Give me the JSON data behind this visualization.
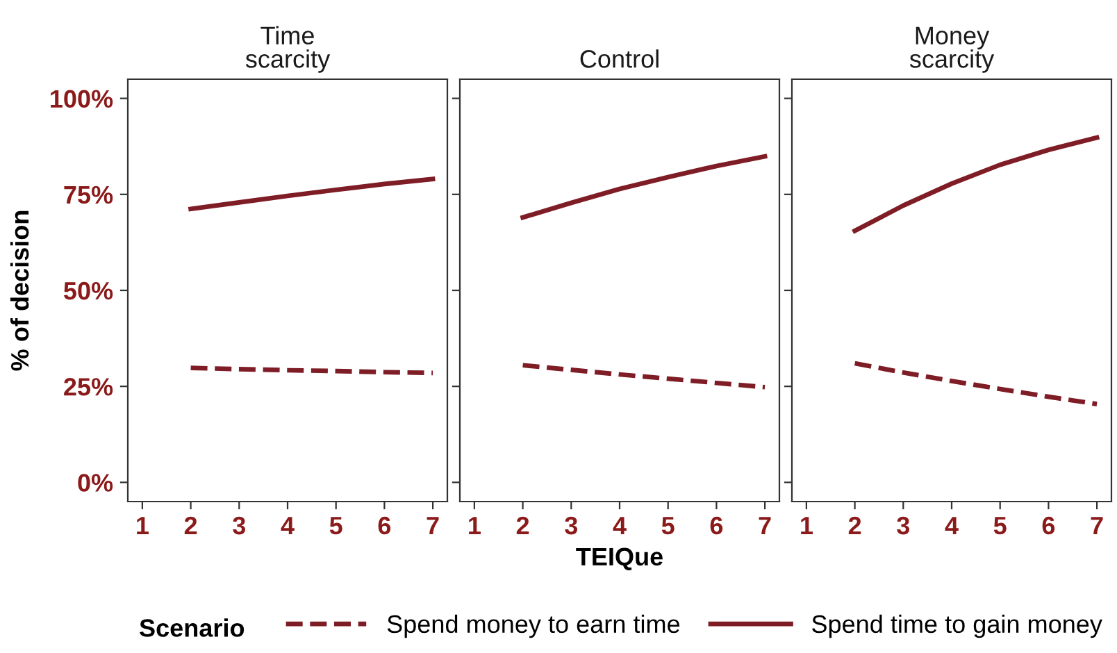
{
  "chart_data": [
    {
      "type": "line",
      "title": "Time\nscarcity",
      "ylabel": "% of decision",
      "legend_title": "Scenario",
      "legend": "bottom",
      "x": [
        2,
        3,
        4,
        5,
        6,
        7
      ],
      "xlim": [
        0.7,
        7.3
      ],
      "xticks": [
        1,
        2,
        3,
        4,
        5,
        6,
        7
      ],
      "ylim": [
        -5,
        105
      ],
      "yticks": [
        {
          "value": 0,
          "label": "0%"
        },
        {
          "value": 25,
          "label": "25%"
        },
        {
          "value": 50,
          "label": "50%"
        },
        {
          "value": 75,
          "label": "75%"
        },
        {
          "value": 100,
          "label": "100%"
        }
      ],
      "grid": false,
      "marker": "none",
      "series": [
        {
          "name": "Spend money to earn time",
          "color": "#7f1d26",
          "line_style": "dashed",
          "values": [
            29.8,
            29.5,
            29.2,
            29.0,
            28.7,
            28.5
          ]
        },
        {
          "name": "Spend time to gain money",
          "color": "#7f1d26",
          "line_style": "solid",
          "values": [
            71.2,
            72.9,
            74.6,
            76.2,
            77.7,
            79.0
          ]
        }
      ]
    },
    {
      "type": "line",
      "title": "Control",
      "xlabel": "TEIQue",
      "tick_labels": "x",
      "x": [
        2,
        3,
        4,
        5,
        6,
        7
      ],
      "xlim": [
        0.7,
        7.3
      ],
      "xticks": [
        1,
        2,
        3,
        4,
        5,
        6,
        7
      ],
      "ylim": [
        -5,
        105
      ],
      "yticks": [
        {
          "value": 0,
          "label": null
        },
        {
          "value": 25,
          "label": null
        },
        {
          "value": 50,
          "label": null
        },
        {
          "value": 75,
          "label": null
        },
        {
          "value": 100,
          "label": null
        }
      ],
      "grid": false,
      "marker": "none",
      "series": [
        {
          "color": "#7f1d26",
          "line_style": "dashed",
          "values": [
            30.5,
            29.3,
            28.1,
            27.0,
            25.9,
            24.8
          ]
        },
        {
          "color": "#7f1d26",
          "line_style": "solid",
          "values": [
            69.0,
            72.8,
            76.4,
            79.5,
            82.4,
            84.9
          ]
        }
      ]
    },
    {
      "type": "line",
      "title": "Money\nscarcity",
      "tick_labels": "x",
      "x": [
        2,
        3,
        4,
        5,
        6,
        7
      ],
      "xlim": [
        0.7,
        7.3
      ],
      "xticks": [
        1,
        2,
        3,
        4,
        5,
        6,
        7
      ],
      "ylim": [
        -5,
        105
      ],
      "yticks": [
        {
          "value": 0,
          "label": null
        },
        {
          "value": 25,
          "label": null
        },
        {
          "value": 50,
          "label": null
        },
        {
          "value": 75,
          "label": null
        },
        {
          "value": 100,
          "label": null
        }
      ],
      "grid": false,
      "marker": "none",
      "series": [
        {
          "color": "#7f1d26",
          "line_style": "dashed",
          "values": [
            31.0,
            28.6,
            26.4,
            24.3,
            22.3,
            20.4
          ]
        },
        {
          "color": "#7f1d26",
          "line_style": "solid",
          "values": [
            65.5,
            72.1,
            77.8,
            82.7,
            86.6,
            89.8
          ]
        }
      ]
    }
  ]
}
